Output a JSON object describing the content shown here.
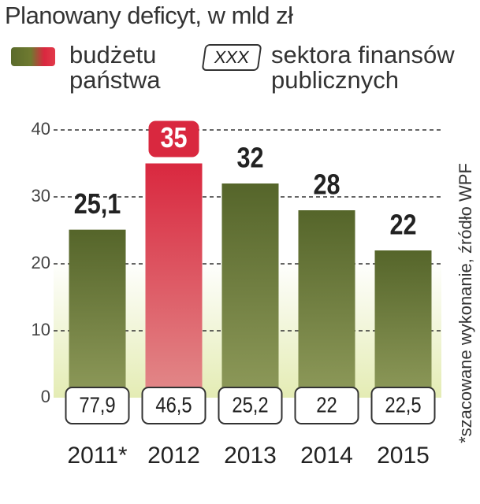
{
  "chart_data": {
    "type": "bar",
    "title": "Planowany deficyt, w mld zł",
    "categories": [
      "2011*",
      "2012",
      "2013",
      "2014",
      "2015"
    ],
    "series": [
      {
        "name": "budżetu państwa",
        "color": "#5b6b2c",
        "highlight_color": "#d9283f",
        "highlight_index": 1,
        "values": [
          25.1,
          35,
          32,
          28,
          22
        ],
        "value_labels": [
          "25,1",
          "35",
          "32",
          "28",
          "22"
        ]
      },
      {
        "name": "sektora finansów publicznych",
        "legend_box_label": "XXX",
        "values": [
          77.9,
          46.5,
          25.2,
          22,
          22.5
        ],
        "value_labels": [
          "77,9",
          "46,5",
          "25,2",
          "22",
          "22,5"
        ]
      }
    ],
    "ylim": [
      0,
      40
    ],
    "yticks": [
      0,
      10,
      20,
      30,
      40
    ],
    "grid": true,
    "note": "*szacowane wykonanie, źródło WPF"
  }
}
